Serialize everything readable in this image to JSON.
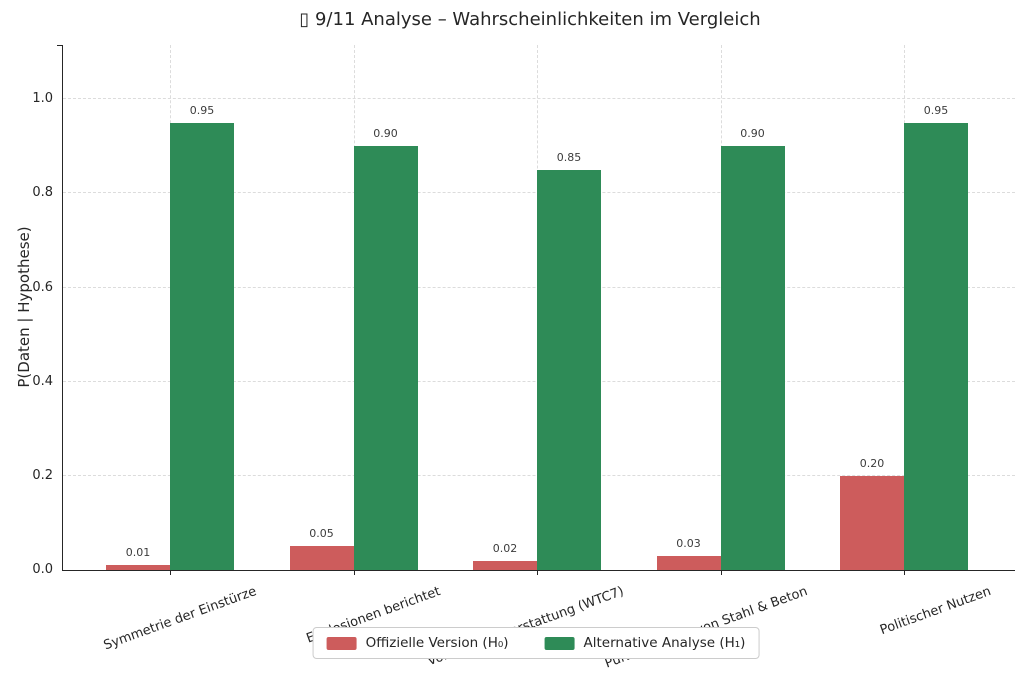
{
  "title": "▯ 9/11 Analyse – Wahrscheinlichkeiten im Vergleich",
  "chart_data": {
    "type": "bar",
    "title": "▯ 9/11 Analyse – Wahrscheinlichkeiten im Vergleich",
    "categories": [
      "Symmetrie der Einstürze",
      "Explosionen berichtet",
      "Vorab-Berichterstattung (WTC7)",
      "Pulverisierung von Stahl & Beton",
      "Politischer Nutzen"
    ],
    "series": [
      {
        "name": "Offizielle Version (H₀)",
        "color": "#cd5c5c",
        "values": [
          0.01,
          0.05,
          0.02,
          0.03,
          0.2
        ]
      },
      {
        "name": "Alternative Analyse (H₁)",
        "color": "#2e8b57",
        "values": [
          0.95,
          0.9,
          0.85,
          0.9,
          0.95
        ]
      }
    ],
    "value_labels": [
      [
        "0.01",
        "0.05",
        "0.02",
        "0.03",
        "0.20"
      ],
      [
        "0.95",
        "0.90",
        "0.85",
        "0.90",
        "0.95"
      ]
    ],
    "xlabel": "",
    "ylabel": "P(Daten | Hypothese)",
    "ylim": [
      0,
      1.115
    ],
    "yticks": [
      0.0,
      0.2,
      0.4,
      0.6,
      0.8,
      1.0
    ],
    "ytick_labels": [
      "0.0",
      "0.2",
      "0.4",
      "0.6",
      "0.8",
      "1.0"
    ],
    "grid": "dashed, horizontal at yticks and vertical at category centers",
    "legend_position": "bottom center, outside plot",
    "bar_orientation": "vertical, grouped pairs"
  },
  "legend": {
    "items": [
      {
        "label": "Offizielle Version (H₀)",
        "color": "#cd5c5c"
      },
      {
        "label": "Alternative Analyse (H₁)",
        "color": "#2e8b57"
      }
    ]
  }
}
